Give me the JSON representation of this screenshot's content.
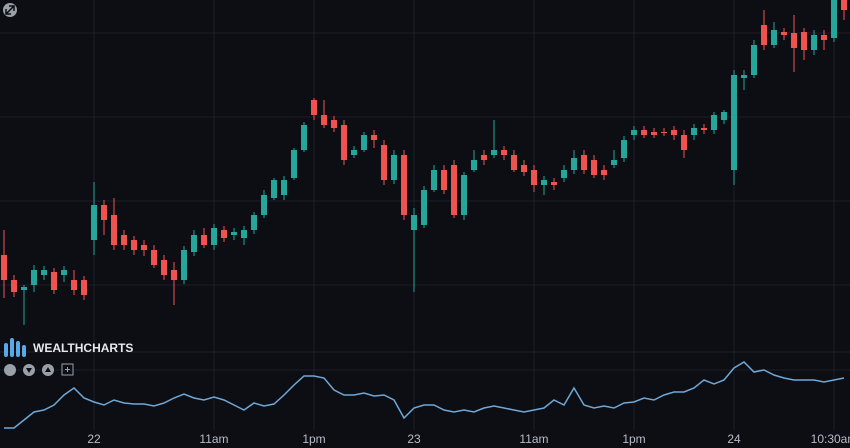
{
  "brand": "WEALTHCHARTS",
  "chart_data": [
    {
      "type": "candlestick",
      "grid": true,
      "up_color": "#26a69a",
      "down_color": "#ef5350",
      "categories": [
        null,
        null,
        null,
        null,
        null,
        null,
        null,
        null,
        null,
        "22",
        null,
        null,
        null,
        null,
        null,
        null,
        null,
        null,
        null,
        null,
        null,
        "11am",
        null,
        null,
        null,
        null,
        null,
        null,
        null,
        null,
        null,
        "1pm",
        null,
        null,
        null,
        null,
        null,
        null,
        null,
        null,
        null,
        "23",
        null,
        null,
        null,
        null,
        null,
        null,
        null,
        null,
        null,
        null,
        null,
        "11am",
        null,
        null,
        null,
        null,
        null,
        null,
        null,
        null,
        null,
        "1pm",
        null,
        null,
        null,
        null,
        null,
        null,
        null,
        null,
        null,
        "24",
        null,
        null,
        null,
        null,
        null,
        null,
        null,
        null,
        null,
        "10:30am",
        null
      ],
      "ylim": [
        0,
        340
      ],
      "open": [
        85,
        60,
        50,
        55,
        65,
        68,
        65,
        60,
        60,
        100,
        135,
        125,
        105,
        100,
        95,
        90,
        80,
        70,
        60,
        88,
        105,
        95,
        110,
        105,
        102,
        110,
        125,
        142,
        145,
        162,
        190,
        240,
        225,
        220,
        215,
        185,
        190,
        205,
        195,
        160,
        185,
        110,
        115,
        150,
        170,
        175,
        125,
        170,
        185,
        185,
        190,
        185,
        175,
        170,
        155,
        158,
        162,
        170,
        185,
        180,
        170,
        175,
        182,
        205,
        210,
        208,
        208,
        210,
        205,
        205,
        212,
        210,
        220,
        170,
        262,
        265,
        315,
        295,
        308,
        307,
        308,
        290,
        305,
        302,
        340
      ],
      "high": [
        110,
        65,
        55,
        75,
        74,
        72,
        74,
        70,
        64,
        158,
        140,
        142,
        110,
        104,
        100,
        95,
        85,
        78,
        94,
        110,
        112,
        116,
        114,
        112,
        114,
        128,
        150,
        162,
        164,
        192,
        218,
        242,
        240,
        224,
        220,
        194,
        208,
        210,
        200,
        190,
        190,
        132,
        154,
        175,
        175,
        180,
        168,
        190,
        190,
        220,
        194,
        190,
        180,
        175,
        164,
        162,
        175,
        190,
        190,
        185,
        175,
        190,
        204,
        214,
        214,
        212,
        212,
        214,
        210,
        216,
        216,
        228,
        230,
        270,
        270,
        300,
        330,
        318,
        312,
        325,
        312,
        310,
        310,
        340,
        340
      ],
      "low": [
        42,
        43,
        15,
        48,
        60,
        46,
        58,
        45,
        40,
        85,
        105,
        90,
        90,
        85,
        84,
        72,
        60,
        35,
        56,
        84,
        92,
        90,
        98,
        100,
        95,
        106,
        122,
        140,
        140,
        160,
        188,
        220,
        212,
        208,
        175,
        182,
        188,
        192,
        155,
        156,
        120,
        48,
        112,
        148,
        146,
        122,
        120,
        168,
        175,
        182,
        180,
        168,
        164,
        148,
        145,
        150,
        158,
        166,
        166,
        162,
        160,
        172,
        178,
        200,
        202,
        202,
        204,
        200,
        182,
        200,
        206,
        206,
        216,
        155,
        250,
        262,
        290,
        292,
        300,
        268,
        280,
        285,
        290,
        298,
        320
      ],
      "close": [
        60,
        48,
        53,
        70,
        70,
        50,
        70,
        50,
        45,
        135,
        120,
        95,
        95,
        90,
        90,
        75,
        65,
        60,
        90,
        105,
        95,
        112,
        102,
        108,
        110,
        125,
        145,
        160,
        160,
        190,
        215,
        225,
        215,
        212,
        180,
        190,
        205,
        200,
        160,
        185,
        125,
        125,
        150,
        170,
        150,
        125,
        165,
        180,
        180,
        190,
        185,
        170,
        168,
        155,
        160,
        155,
        170,
        182,
        170,
        165,
        165,
        180,
        200,
        210,
        205,
        205,
        207,
        205,
        190,
        212,
        210,
        225,
        228,
        265,
        265,
        295,
        295,
        310,
        305,
        292,
        290,
        305,
        300,
        340,
        330
      ]
    },
    {
      "type": "line",
      "color": "#6fa8d6",
      "ylim": [
        0,
        85
      ],
      "values": [
        12,
        12,
        20,
        28,
        30,
        35,
        45,
        52,
        42,
        38,
        35,
        40,
        37,
        36,
        36,
        34,
        37,
        42,
        46,
        42,
        40,
        43,
        40,
        35,
        30,
        37,
        34,
        36,
        45,
        55,
        64,
        64,
        62,
        50,
        45,
        45,
        47,
        44,
        45,
        40,
        22,
        32,
        35,
        35,
        30,
        28,
        30,
        28,
        32,
        34,
        32,
        30,
        28,
        30,
        32,
        40,
        35,
        52,
        35,
        32,
        34,
        32,
        37,
        38,
        42,
        40,
        45,
        48,
        48,
        52,
        60,
        56,
        60,
        72,
        78,
        68,
        70,
        65,
        62,
        60,
        60,
        60,
        58,
        60,
        62
      ]
    }
  ]
}
